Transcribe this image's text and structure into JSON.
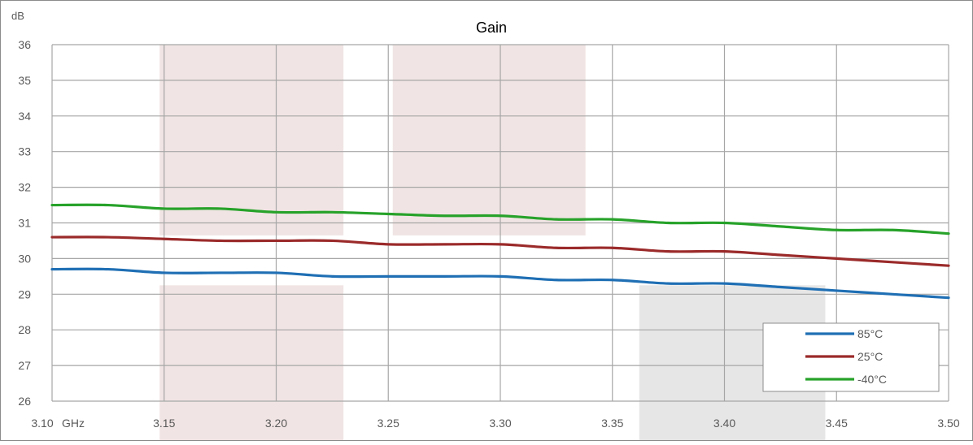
{
  "chart_data": {
    "type": "line",
    "title": "Gain",
    "ylabel": "dB",
    "x_unit": "GHz",
    "xlim": [
      3.1,
      3.5
    ],
    "ylim": [
      26,
      36
    ],
    "x_ticks": [
      "3.10",
      "3.15",
      "3.20",
      "3.25",
      "3.30",
      "3.35",
      "3.40",
      "3.45",
      "3.50"
    ],
    "y_ticks": [
      "26",
      "27",
      "28",
      "29",
      "30",
      "31",
      "32",
      "33",
      "34",
      "35",
      "36"
    ],
    "grid": true,
    "legend_position": "bottom-right",
    "x": [
      3.1,
      3.125,
      3.15,
      3.175,
      3.2,
      3.225,
      3.25,
      3.275,
      3.3,
      3.325,
      3.35,
      3.375,
      3.4,
      3.425,
      3.45,
      3.475,
      3.5
    ],
    "series": [
      {
        "name": "85°C",
        "color": "#1f6fb4",
        "values": [
          29.7,
          29.7,
          29.6,
          29.6,
          29.6,
          29.5,
          29.5,
          29.5,
          29.5,
          29.4,
          29.4,
          29.3,
          29.3,
          29.2,
          29.1,
          29.0,
          28.9
        ]
      },
      {
        "name": "25°C",
        "color": "#9b2a2a",
        "values": [
          30.6,
          30.6,
          30.55,
          30.5,
          30.5,
          30.5,
          30.4,
          30.4,
          30.4,
          30.3,
          30.3,
          30.2,
          30.2,
          30.1,
          30.0,
          29.9,
          29.8
        ]
      },
      {
        "name": "-40°C",
        "color": "#27a22a",
        "values": [
          31.5,
          31.5,
          31.4,
          31.4,
          31.3,
          31.3,
          31.25,
          31.2,
          31.2,
          31.1,
          31.1,
          31.0,
          31.0,
          30.9,
          30.8,
          30.8,
          30.7
        ]
      }
    ],
    "shaded_regions": [
      {
        "x0": 3.148,
        "x1": 3.23,
        "y0": 30.65,
        "y1": 36,
        "color": "#f1e4e4"
      },
      {
        "x0": 3.252,
        "x1": 3.338,
        "y0": 30.65,
        "y1": 36,
        "color": "#f1e4e4"
      },
      {
        "x0": 3.148,
        "x1": 3.23,
        "y0": 24,
        "y1": 29.25,
        "color": "#f1e4e4"
      },
      {
        "x0": 3.362,
        "x1": 3.445,
        "y0": 24,
        "y1": 29.25,
        "color": "#e6e6e6"
      }
    ],
    "colors": {
      "grid": "#a6a6a6",
      "axis_text": "#595959",
      "border": "#8c8c8c"
    }
  }
}
